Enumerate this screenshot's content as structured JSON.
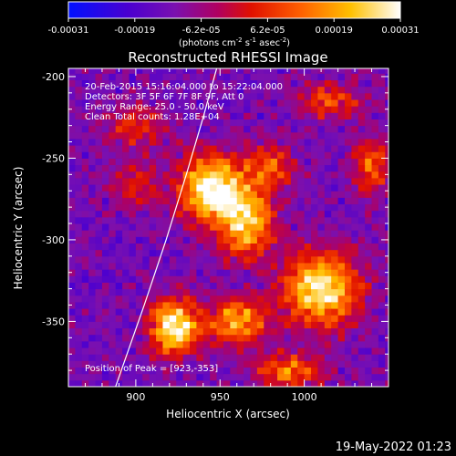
{
  "chart_data": {
    "type": "heatmap",
    "title": "Reconstructed RHESSI Image",
    "xlabel": "Heliocentric X (arcsec)",
    "ylabel": "Heliocentric Y (arcsec)",
    "xlim": [
      860,
      1050
    ],
    "ylim": [
      -390,
      -195
    ],
    "x_ticks": [
      900,
      950,
      1000
    ],
    "y_ticks": [
      -200,
      -250,
      -300,
      -350
    ],
    "colorbar": {
      "range": [
        -0.00031,
        0.00031
      ],
      "tick_labels": [
        "-0.00031",
        "-0.00019",
        "-6.2e-05",
        "6.2e-05",
        "0.00019",
        "0.00031"
      ],
      "unit_label": "(photons cm",
      "unit_sup1": "-2",
      "unit_mid": " s",
      "unit_sup2": "-1",
      "unit_end": " asec",
      "unit_sup3": "-2",
      "unit_close": ")"
    },
    "annotations": [
      "20-Feb-2015 15:16:04.000 to 15:22:04.000",
      "Detectors: 3F 5F 6F 7F 8F 9F, Att 0",
      "Energy Range: 25.0 - 50.0 keV",
      "Clean     Total counts: 1.28E+04"
    ],
    "peak_label": "Position of Peak = [923,-353]",
    "peak": [
      923,
      -353
    ],
    "limb_curve": [
      [
        888,
        -390
      ],
      [
        905,
        -340
      ],
      [
        918,
        -300
      ],
      [
        930,
        -260
      ],
      [
        940,
        -225
      ],
      [
        948,
        -195
      ]
    ],
    "sources": [
      {
        "x": 945,
        "y": -268,
        "amp": 1.0,
        "sx": 14,
        "sy": 14
      },
      {
        "x": 965,
        "y": -290,
        "amp": 0.8,
        "sx": 12,
        "sy": 14
      },
      {
        "x": 1010,
        "y": -330,
        "amp": 0.95,
        "sx": 16,
        "sy": 16
      },
      {
        "x": 923,
        "y": -353,
        "amp": 1.0,
        "sx": 10,
        "sy": 12
      },
      {
        "x": 960,
        "y": -350,
        "amp": 0.75,
        "sx": 12,
        "sy": 10
      },
      {
        "x": 1040,
        "y": -255,
        "amp": 0.55,
        "sx": 8,
        "sy": 12
      },
      {
        "x": 990,
        "y": -380,
        "amp": 0.6,
        "sx": 14,
        "sy": 8
      },
      {
        "x": 1015,
        "y": -215,
        "amp": 0.45,
        "sx": 14,
        "sy": 8
      },
      {
        "x": 900,
        "y": -230,
        "amp": 0.35,
        "sx": 14,
        "sy": 10
      },
      {
        "x": 900,
        "y": -265,
        "amp": 0.35,
        "sx": 10,
        "sy": 10
      },
      {
        "x": 980,
        "y": -255,
        "amp": 0.5,
        "sx": 10,
        "sy": 10
      }
    ]
  },
  "footer": {
    "timestamp": "19-May-2022 01:23"
  }
}
